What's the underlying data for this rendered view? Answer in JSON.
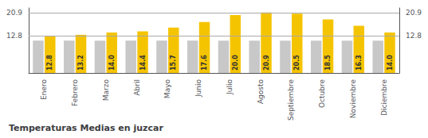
{
  "chart_data": {
    "type": "bar",
    "title": "Temperaturas Medias en juzcar",
    "categories": [
      "Enero",
      "Febrero",
      "Marzo",
      "Abril",
      "Mayo",
      "Junio",
      "Julio",
      "Agosto",
      "Septiembre",
      "Octubre",
      "Noviembre",
      "Diciembre"
    ],
    "series": [
      {
        "color": "#C8C8C8",
        "values": [
          11.2,
          11.2,
          11.2,
          11.2,
          11.2,
          11.2,
          11.2,
          11.2,
          11.2,
          11.2,
          11.2,
          11.2
        ]
      },
      {
        "color": "#F5C400",
        "values": [
          12.8,
          13.2,
          14.0,
          14.4,
          15.7,
          17.6,
          20.0,
          20.9,
          20.5,
          18.5,
          16.3,
          14.0
        ],
        "value_labels": [
          "12.8",
          "13.2",
          "14.0",
          "14.4",
          "15.7",
          "17.6",
          "20.0",
          "20.9",
          "20.5",
          "18.5",
          "16.3",
          "14.0"
        ],
        "data_labels": true
      }
    ],
    "ylim": [
      0.0,
      22.5
    ],
    "yticks": [
      12.8,
      20.9
    ],
    "y2lim": [
      0.0,
      22.5
    ],
    "y2ticks": [
      12.8,
      20.9
    ],
    "grid": true
  }
}
